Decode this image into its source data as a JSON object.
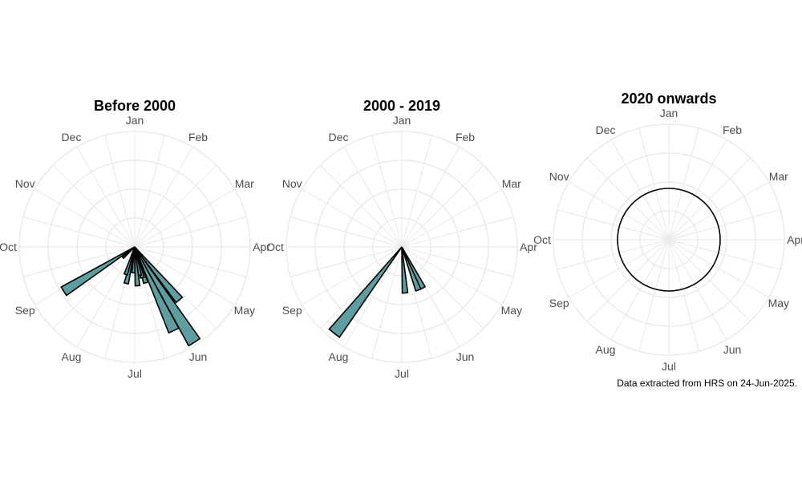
{
  "caption": "Data extracted from HRS on 24-Jun-2025.",
  "colors": {
    "bar_fill": "#5f9ea0",
    "bar_stroke": "#000000",
    "grid": "#ebebeb",
    "label": "#4d4d4d"
  },
  "chart_data": [
    {
      "type": "polar-bar",
      "title": "Before 2000",
      "month_labels": [
        "Jan",
        "Feb",
        "Mar",
        "Apr",
        "May",
        "Jun",
        "Jul",
        "Aug",
        "Sep",
        "Oct",
        "Nov",
        "Dec"
      ],
      "direction": "clockwise",
      "rmax": 4,
      "grid": true,
      "bars": [
        {
          "month": "Jun",
          "value": 3.9
        },
        {
          "month": "Jun",
          "value": 3.2
        },
        {
          "month": "May",
          "value": 2.4
        },
        {
          "month": "Jun",
          "value": 1.3
        },
        {
          "month": "Jun",
          "value": 1.1
        },
        {
          "month": "Jul",
          "value": 1.0
        },
        {
          "month": "Jul",
          "value": 1.35
        },
        {
          "month": "Jul",
          "value": 0.9
        },
        {
          "month": "Aug",
          "value": 1.3
        },
        {
          "month": "Aug",
          "value": 1.0
        },
        {
          "month": "Sep",
          "value": 0.4
        },
        {
          "month": "Sep",
          "value": 0.55
        },
        {
          "month": "Sep",
          "value": 2.9
        }
      ]
    },
    {
      "type": "polar-bar",
      "title": "2000 - 2019",
      "month_labels": [
        "Jan",
        "Feb",
        "Mar",
        "Apr",
        "May",
        "Jun",
        "Jul",
        "Aug",
        "Sep",
        "Oct",
        "Nov",
        "Dec"
      ],
      "direction": "clockwise",
      "rmax": 4,
      "grid": true,
      "bars": [
        {
          "month": "Jun",
          "value": 1.6
        },
        {
          "month": "Jun",
          "value": 1.6
        },
        {
          "month": "Jul",
          "value": 1.6
        },
        {
          "month": "Aug",
          "value": 3.8
        }
      ]
    },
    {
      "type": "polar-bar",
      "title": "2020 onwards",
      "month_labels": [
        "Jan",
        "Feb",
        "Mar",
        "Apr",
        "May",
        "Jun",
        "Jul",
        "Aug",
        "Sep",
        "Oct",
        "Nov",
        "Dec"
      ],
      "direction": "clockwise",
      "rmax": 4,
      "grid": true,
      "bars": []
    }
  ]
}
